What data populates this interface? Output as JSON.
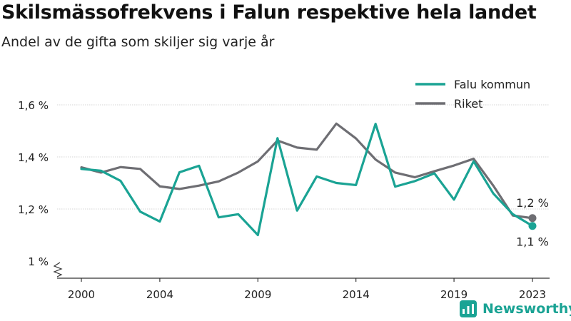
{
  "title": "Skilsmässofrekvens i Falun respektive hela landet",
  "subtitle": "Andel av de gifta som skiljer sig varje år",
  "brand": {
    "name": "Newsworthy",
    "icon": "newsworthy-logo-icon",
    "color": "#1aa394"
  },
  "chart_data": {
    "type": "line",
    "x": [
      2000,
      2001,
      2002,
      2003,
      2004,
      2005,
      2006,
      2007,
      2008,
      2009,
      2010,
      2011,
      2012,
      2013,
      2014,
      2015,
      2016,
      2017,
      2018,
      2019,
      2020,
      2021,
      2022,
      2023
    ],
    "x_ticks": [
      2000,
      2004,
      2009,
      2014,
      2019,
      2023
    ],
    "y_ticks": [
      1.0,
      1.2,
      1.4,
      1.6
    ],
    "y_tick_labels": [
      "1 %",
      "1,2 %",
      "1,4 %",
      "1,6 %"
    ],
    "ylim": [
      0.95,
      1.63
    ],
    "y_axis_broken": true,
    "grid": "horizontal",
    "legend": "top-right",
    "series": [
      {
        "name": "Falu kommun",
        "color": "#1aa394",
        "values": [
          1.354,
          1.347,
          1.308,
          1.19,
          1.152,
          1.341,
          1.366,
          1.168,
          1.18,
          1.1,
          1.472,
          1.194,
          1.325,
          1.3,
          1.292,
          1.527,
          1.286,
          1.307,
          1.337,
          1.236,
          1.383,
          1.26,
          1.18,
          1.135
        ],
        "end_label": "1,1 %"
      },
      {
        "name": "Riket",
        "color": "#6e6e73",
        "values": [
          1.36,
          1.34,
          1.361,
          1.354,
          1.287,
          1.277,
          1.29,
          1.306,
          1.34,
          1.383,
          1.463,
          1.436,
          1.428,
          1.528,
          1.471,
          1.39,
          1.34,
          1.322,
          1.345,
          1.367,
          1.393,
          1.29,
          1.175,
          1.165
        ],
        "end_label": "1,2 %"
      }
    ]
  }
}
